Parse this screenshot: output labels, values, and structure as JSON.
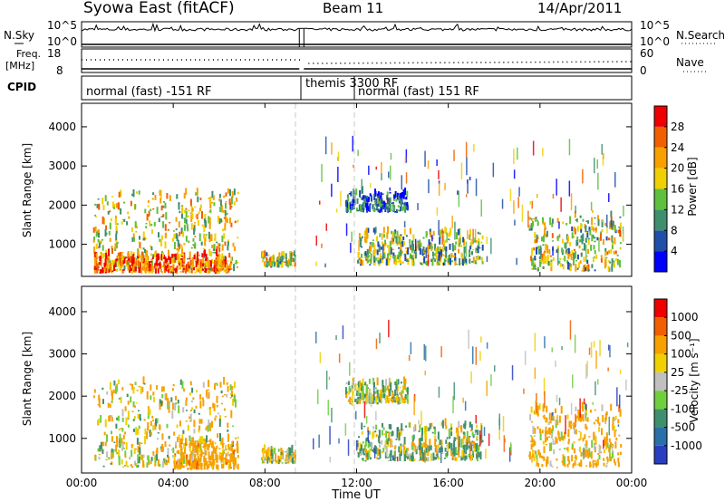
{
  "header": {
    "title": "Syowa East (fitACF)",
    "beam": "Beam 11",
    "date": "14/Apr/2011"
  },
  "noise_panel": {
    "left_label": "N.Sky",
    "right_label": "N.Search",
    "left_ticks": [
      "10^5",
      "10^0"
    ],
    "right_ticks": [
      "10^5",
      "10^0"
    ]
  },
  "freq_panel": {
    "left_label_1": "Freq.",
    "left_label_2": "[MHz]",
    "right_label": "Nave",
    "left_ticks": [
      "18",
      "8"
    ],
    "right_ticks": [
      "60",
      "0"
    ]
  },
  "cpid_panel": {
    "label": "CPID",
    "segments": [
      "normal (fast) -151 RF",
      "themis 3300 RF",
      "normal (fast) 151 RF"
    ]
  },
  "power_panel": {
    "ylabel": "Slant Range [km]",
    "yticks": [
      "1000",
      "2000",
      "3000",
      "4000"
    ],
    "colorbar_label": "Power [dB]",
    "colorbar_ticks": [
      "4",
      "8",
      "12",
      "16",
      "20",
      "24",
      "28"
    ],
    "colorbar_colors": [
      "#0000ff",
      "#1f4fa8",
      "#3f8f6f",
      "#5fbf3f",
      "#f0d000",
      "#f7a000",
      "#f06000",
      "#ee0000"
    ]
  },
  "velocity_panel": {
    "ylabel": "Slant Range [km]",
    "yticks": [
      "1000",
      "2000",
      "3000",
      "4000"
    ],
    "colorbar_label": "Velocity [m s⁻¹]",
    "colorbar_ticks": [
      "1000",
      "500",
      "100",
      "25",
      "-25",
      "-100",
      "-500",
      "-1000"
    ],
    "colorbar_colors": [
      "#2a3fbf",
      "#2a6fa8",
      "#3f8f6f",
      "#6fcf3f",
      "#c0c0c0",
      "#f0d000",
      "#f7a000",
      "#f06000",
      "#ee0000"
    ]
  },
  "xaxis": {
    "ticks": [
      "00:00",
      "04:00",
      "08:00",
      "12:00",
      "16:00",
      "20:00",
      "00:00"
    ],
    "label": "Time UT"
  },
  "chart_data": [
    {
      "type": "heatmap",
      "name": "power",
      "x_range_hours": [
        0,
        24
      ],
      "y_range_km": [
        180,
        4600
      ],
      "value_range_db": [
        0,
        30
      ],
      "regions": [
        {
          "t": [
            0.5,
            6.8
          ],
          "r": [
            300,
            2300
          ],
          "level": 0.55
        },
        {
          "t": [
            0.5,
            6.5
          ],
          "r": [
            250,
            700
          ],
          "level": 0.8
        },
        {
          "t": [
            7.8,
            9.3
          ],
          "r": [
            400,
            700
          ],
          "level": 0.5
        },
        {
          "t": [
            11.5,
            14.2
          ],
          "r": [
            1800,
            2300
          ],
          "level": 0.2
        },
        {
          "t": [
            12.0,
            17.5
          ],
          "r": [
            450,
            1300
          ],
          "level": 0.45
        },
        {
          "t": [
            19.5,
            23.5
          ],
          "r": [
            300,
            1700
          ],
          "level": 0.5
        }
      ]
    },
    {
      "type": "heatmap",
      "name": "velocity",
      "x_range_hours": [
        0,
        24
      ],
      "y_range_km": [
        180,
        4600
      ],
      "value_range_ms": [
        -1000,
        1000
      ],
      "regions": [
        {
          "t": [
            0.5,
            6.8
          ],
          "r": [
            300,
            2300
          ],
          "level": -100
        },
        {
          "t": [
            4.0,
            6.8
          ],
          "r": [
            250,
            900
          ],
          "level": -300
        },
        {
          "t": [
            7.8,
            9.3
          ],
          "r": [
            400,
            700
          ],
          "level": 0
        },
        {
          "t": [
            11.5,
            14.2
          ],
          "r": [
            1800,
            2300
          ],
          "level": 0
        },
        {
          "t": [
            12.0,
            17.5
          ],
          "r": [
            450,
            1300
          ],
          "level": 80
        },
        {
          "t": [
            19.5,
            23.5
          ],
          "r": [
            300,
            1700
          ],
          "level": -200
        }
      ]
    }
  ]
}
